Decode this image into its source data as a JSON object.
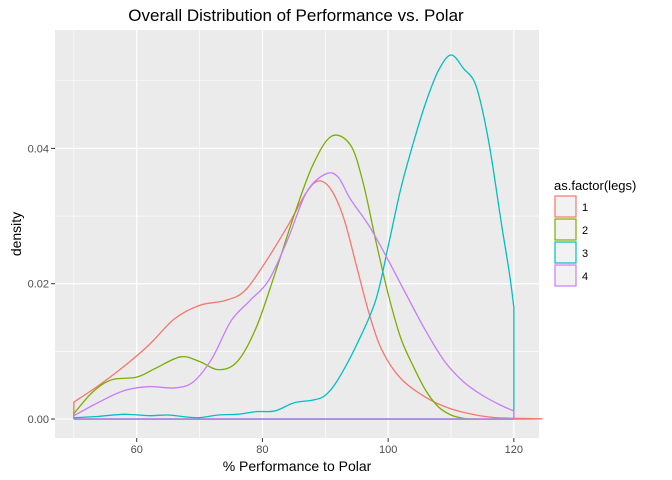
{
  "chart_data": {
    "type": "line",
    "title": "Overall Distribution of Performance vs. Polar",
    "xlabel": "% Performance to Polar",
    "ylabel": "density",
    "xlim": [
      47,
      124
    ],
    "ylim": [
      -0.0028,
      0.0575
    ],
    "x_ticks": [
      60,
      80,
      100,
      120
    ],
    "x_tick_labels": [
      "60",
      "80",
      "100",
      "120"
    ],
    "y_ticks": [
      0.0,
      0.02,
      0.04
    ],
    "y_tick_labels": [
      "0.00",
      "0.02",
      "0.04"
    ],
    "grid": true,
    "background": "#ebebeb",
    "legend": {
      "title": "as.factor(legs)",
      "placement": "right"
    },
    "series": [
      {
        "name": "1",
        "color": "#F8766D",
        "points": [
          [
            50,
            0.0
          ],
          [
            50,
            0.0025
          ],
          [
            54,
            0.005
          ],
          [
            58,
            0.0078
          ],
          [
            62,
            0.011
          ],
          [
            66,
            0.0148
          ],
          [
            70,
            0.0168
          ],
          [
            74,
            0.0175
          ],
          [
            77,
            0.0188
          ],
          [
            80,
            0.0225
          ],
          [
            84,
            0.0285
          ],
          [
            87,
            0.0335
          ],
          [
            89,
            0.0352
          ],
          [
            91,
            0.0338
          ],
          [
            93,
            0.0295
          ],
          [
            95,
            0.0225
          ],
          [
            97,
            0.0155
          ],
          [
            99,
            0.0102
          ],
          [
            102,
            0.006
          ],
          [
            106,
            0.0032
          ],
          [
            110,
            0.0015
          ],
          [
            114,
            0.0006
          ],
          [
            117,
            0.0002
          ],
          [
            120,
            0.0
          ],
          [
            50,
            0.0
          ]
        ]
      },
      {
        "name": "2",
        "color": "#7CAE00",
        "points": [
          [
            50,
            0.0
          ],
          [
            50,
            0.0008
          ],
          [
            53,
            0.004
          ],
          [
            56,
            0.0058
          ],
          [
            60,
            0.0062
          ],
          [
            63,
            0.0075
          ],
          [
            67,
            0.0092
          ],
          [
            70,
            0.0085
          ],
          [
            73,
            0.0073
          ],
          [
            76,
            0.0085
          ],
          [
            79,
            0.0135
          ],
          [
            82,
            0.0215
          ],
          [
            85,
            0.03
          ],
          [
            88,
            0.0375
          ],
          [
            91,
            0.0418
          ],
          [
            94,
            0.0405
          ],
          [
            96,
            0.035
          ],
          [
            98,
            0.0265
          ],
          [
            100,
            0.0185
          ],
          [
            102,
            0.012
          ],
          [
            104,
            0.0078
          ],
          [
            106,
            0.0042
          ],
          [
            108,
            0.0018
          ],
          [
            110,
            0.0006
          ],
          [
            112,
            0.0001
          ],
          [
            114,
            0.0
          ],
          [
            120,
            0.0
          ],
          [
            50,
            0.0
          ]
        ]
      },
      {
        "name": "3",
        "color": "#00BFC4",
        "points": [
          [
            50,
            0.0
          ],
          [
            50,
            0.0002
          ],
          [
            54,
            0.0004
          ],
          [
            58,
            0.0007
          ],
          [
            62,
            0.0005
          ],
          [
            65,
            0.0006
          ],
          [
            68,
            0.0003
          ],
          [
            70,
            0.0002
          ],
          [
            73,
            0.0006
          ],
          [
            76,
            0.0007
          ],
          [
            79,
            0.0011
          ],
          [
            82,
            0.0012
          ],
          [
            85,
            0.0024
          ],
          [
            88,
            0.0028
          ],
          [
            90,
            0.0035
          ],
          [
            92,
            0.0058
          ],
          [
            95,
            0.011
          ],
          [
            98,
            0.0175
          ],
          [
            100,
            0.0255
          ],
          [
            102,
            0.034
          ],
          [
            104,
            0.0408
          ],
          [
            106,
            0.0468
          ],
          [
            108,
            0.0515
          ],
          [
            110,
            0.0538
          ],
          [
            112,
            0.0518
          ],
          [
            114,
            0.0492
          ],
          [
            116,
            0.041
          ],
          [
            118,
            0.029
          ],
          [
            119.3,
            0.0215
          ],
          [
            120,
            0.0165
          ],
          [
            120,
            0.0
          ],
          [
            50,
            0.0
          ]
        ]
      },
      {
        "name": "4",
        "color": "#C77CFF",
        "points": [
          [
            50,
            0.0
          ],
          [
            50,
            0.0005
          ],
          [
            54,
            0.0025
          ],
          [
            58,
            0.0042
          ],
          [
            62,
            0.0048
          ],
          [
            66,
            0.0046
          ],
          [
            69,
            0.0055
          ],
          [
            72,
            0.009
          ],
          [
            75,
            0.0145
          ],
          [
            78,
            0.0175
          ],
          [
            81,
            0.0205
          ],
          [
            84,
            0.0265
          ],
          [
            87,
            0.0335
          ],
          [
            90,
            0.0362
          ],
          [
            92,
            0.0358
          ],
          [
            94,
            0.0325
          ],
          [
            97,
            0.0285
          ],
          [
            100,
            0.0235
          ],
          [
            103,
            0.0182
          ],
          [
            106,
            0.013
          ],
          [
            109,
            0.0085
          ],
          [
            112,
            0.0055
          ],
          [
            115,
            0.0035
          ],
          [
            118,
            0.002
          ],
          [
            120,
            0.0012
          ],
          [
            120,
            0.0
          ],
          [
            50,
            0.0
          ]
        ]
      }
    ]
  }
}
